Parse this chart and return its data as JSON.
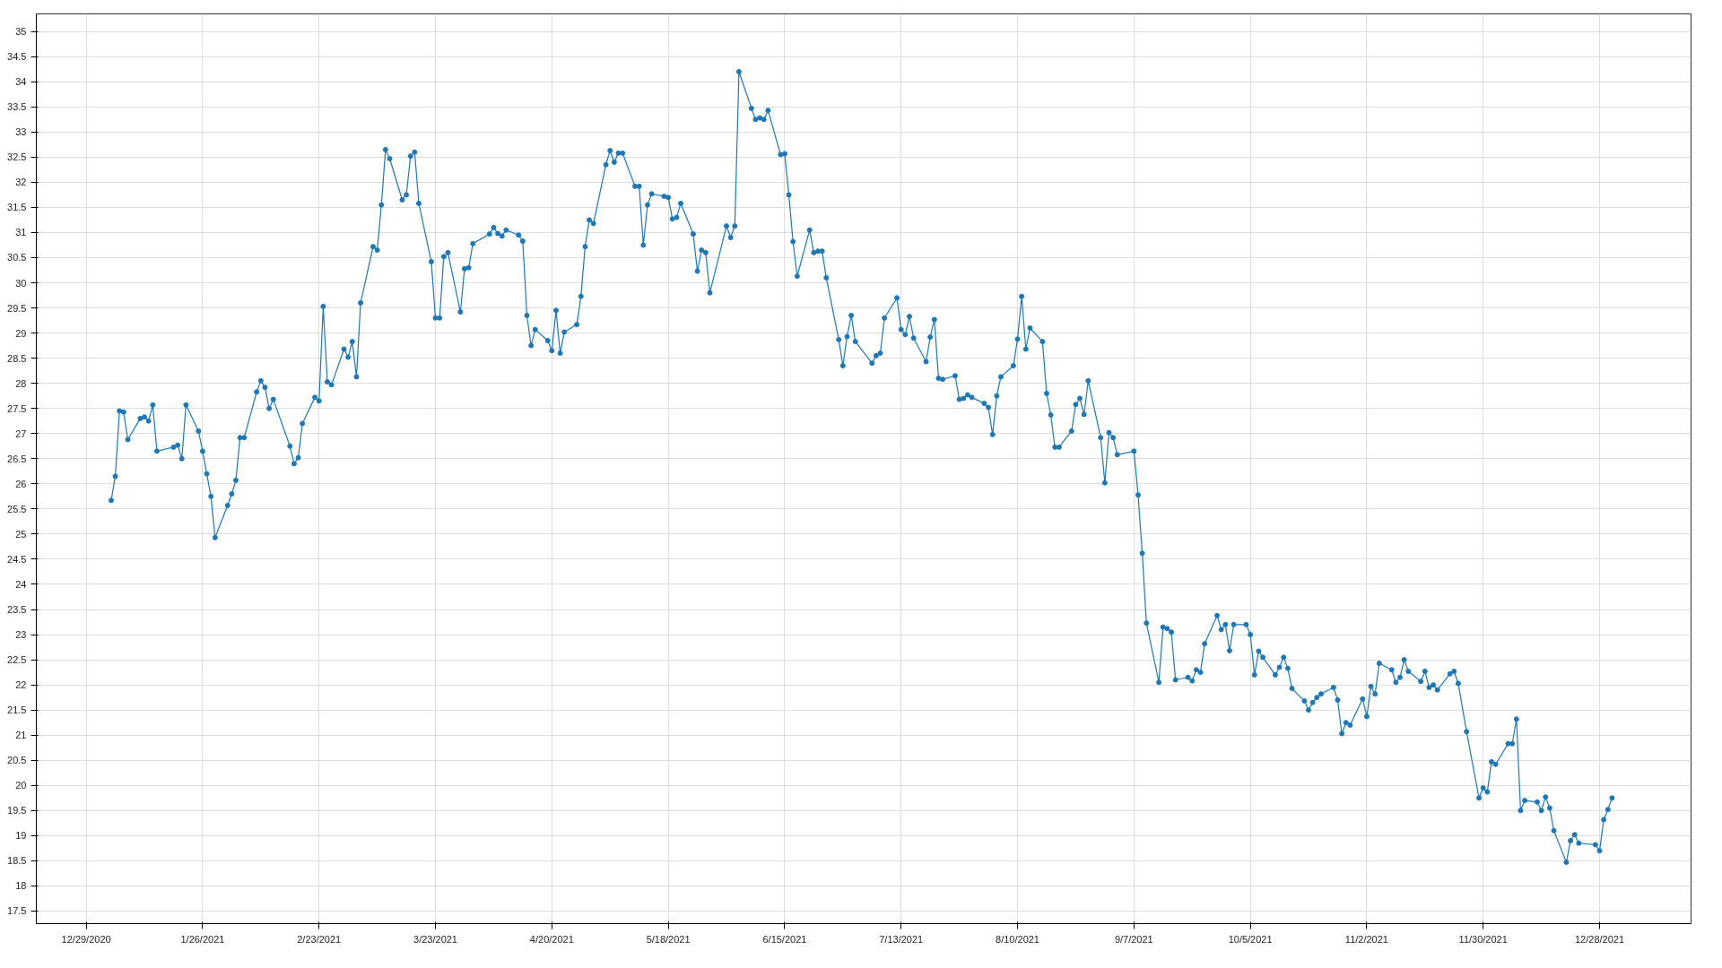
{
  "chart_data": {
    "type": "line",
    "marker": "circle",
    "grid": true,
    "xlim": [
      "2020-12-17",
      "2022-01-19"
    ],
    "ylim": [
      17.25,
      35.35
    ],
    "xticks": [
      {
        "value": "2020-12-29",
        "label": "12/29/2020"
      },
      {
        "value": "2021-01-26",
        "label": "1/26/2021"
      },
      {
        "value": "2021-02-23",
        "label": "2/23/2021"
      },
      {
        "value": "2021-03-23",
        "label": "3/23/2021"
      },
      {
        "value": "2021-04-20",
        "label": "4/20/2021"
      },
      {
        "value": "2021-05-18",
        "label": "5/18/2021"
      },
      {
        "value": "2021-06-15",
        "label": "6/15/2021"
      },
      {
        "value": "2021-07-13",
        "label": "7/13/2021"
      },
      {
        "value": "2021-08-10",
        "label": "8/10/2021"
      },
      {
        "value": "2021-09-07",
        "label": "9/7/2021"
      },
      {
        "value": "2021-10-05",
        "label": "10/5/2021"
      },
      {
        "value": "2021-11-02",
        "label": "11/2/2021"
      },
      {
        "value": "2021-11-30",
        "label": "11/30/2021"
      },
      {
        "value": "2021-12-28",
        "label": "12/28/2021"
      }
    ],
    "yticks": [
      17.5,
      18,
      18.5,
      19,
      19.5,
      20,
      20.5,
      21,
      21.5,
      22,
      22.5,
      23,
      23.5,
      24,
      24.5,
      25,
      25.5,
      26,
      26.5,
      27,
      27.5,
      28,
      28.5,
      29,
      29.5,
      30,
      30.5,
      31,
      31.5,
      32,
      32.5,
      33,
      33.5,
      34,
      34.5,
      35
    ],
    "series": [
      {
        "color": "#1f77b4",
        "x": [
          "2021-01-04",
          "2021-01-05",
          "2021-01-06",
          "2021-01-07",
          "2021-01-08",
          "2021-01-11",
          "2021-01-12",
          "2021-01-13",
          "2021-01-14",
          "2021-01-15",
          "2021-01-19",
          "2021-01-20",
          "2021-01-21",
          "2021-01-22",
          "2021-01-25",
          "2021-01-26",
          "2021-01-27",
          "2021-01-28",
          "2021-01-29",
          "2021-02-01",
          "2021-02-02",
          "2021-02-03",
          "2021-02-04",
          "2021-02-05",
          "2021-02-08",
          "2021-02-09",
          "2021-02-10",
          "2021-02-11",
          "2021-02-12",
          "2021-02-16",
          "2021-02-17",
          "2021-02-18",
          "2021-02-19",
          "2021-02-22",
          "2021-02-23",
          "2021-02-24",
          "2021-02-25",
          "2021-02-26",
          "2021-03-01",
          "2021-03-02",
          "2021-03-03",
          "2021-03-04",
          "2021-03-05",
          "2021-03-08",
          "2021-03-09",
          "2021-03-10",
          "2021-03-11",
          "2021-03-12",
          "2021-03-15",
          "2021-03-16",
          "2021-03-17",
          "2021-03-18",
          "2021-03-19",
          "2021-03-22",
          "2021-03-23",
          "2021-03-24",
          "2021-03-25",
          "2021-03-26",
          "2021-03-29",
          "2021-03-30",
          "2021-03-31",
          "2021-04-01",
          "2021-04-05",
          "2021-04-06",
          "2021-04-07",
          "2021-04-08",
          "2021-04-09",
          "2021-04-12",
          "2021-04-13",
          "2021-04-14",
          "2021-04-15",
          "2021-04-16",
          "2021-04-19",
          "2021-04-20",
          "2021-04-21",
          "2021-04-22",
          "2021-04-23",
          "2021-04-26",
          "2021-04-27",
          "2021-04-28",
          "2021-04-29",
          "2021-04-30",
          "2021-05-03",
          "2021-05-04",
          "2021-05-05",
          "2021-05-06",
          "2021-05-07",
          "2021-05-10",
          "2021-05-11",
          "2021-05-12",
          "2021-05-13",
          "2021-05-14",
          "2021-05-17",
          "2021-05-18",
          "2021-05-19",
          "2021-05-20",
          "2021-05-21",
          "2021-05-24",
          "2021-05-25",
          "2021-05-26",
          "2021-05-27",
          "2021-05-28",
          "2021-06-01",
          "2021-06-02",
          "2021-06-03",
          "2021-06-04",
          "2021-06-07",
          "2021-06-08",
          "2021-06-09",
          "2021-06-10",
          "2021-06-11",
          "2021-06-14",
          "2021-06-15",
          "2021-06-16",
          "2021-06-17",
          "2021-06-18",
          "2021-06-21",
          "2021-06-22",
          "2021-06-23",
          "2021-06-24",
          "2021-06-25",
          "2021-06-28",
          "2021-06-29",
          "2021-06-30",
          "2021-07-01",
          "2021-07-02",
          "2021-07-06",
          "2021-07-07",
          "2021-07-08",
          "2021-07-09",
          "2021-07-12",
          "2021-07-13",
          "2021-07-14",
          "2021-07-15",
          "2021-07-16",
          "2021-07-19",
          "2021-07-20",
          "2021-07-21",
          "2021-07-22",
          "2021-07-23",
          "2021-07-26",
          "2021-07-27",
          "2021-07-28",
          "2021-07-29",
          "2021-07-30",
          "2021-08-02",
          "2021-08-03",
          "2021-08-04",
          "2021-08-05",
          "2021-08-06",
          "2021-08-09",
          "2021-08-10",
          "2021-08-11",
          "2021-08-12",
          "2021-08-13",
          "2021-08-16",
          "2021-08-17",
          "2021-08-18",
          "2021-08-19",
          "2021-08-20",
          "2021-08-23",
          "2021-08-24",
          "2021-08-25",
          "2021-08-26",
          "2021-08-27",
          "2021-08-30",
          "2021-08-31",
          "2021-09-01",
          "2021-09-02",
          "2021-09-03",
          "2021-09-07",
          "2021-09-08",
          "2021-09-09",
          "2021-09-10",
          "2021-09-13",
          "2021-09-14",
          "2021-09-15",
          "2021-09-16",
          "2021-09-17",
          "2021-09-20",
          "2021-09-21",
          "2021-09-22",
          "2021-09-23",
          "2021-09-24",
          "2021-09-27",
          "2021-09-28",
          "2021-09-29",
          "2021-09-30",
          "2021-10-01",
          "2021-10-04",
          "2021-10-05",
          "2021-10-06",
          "2021-10-07",
          "2021-10-08",
          "2021-10-11",
          "2021-10-12",
          "2021-10-13",
          "2021-10-14",
          "2021-10-15",
          "2021-10-18",
          "2021-10-19",
          "2021-10-20",
          "2021-10-21",
          "2021-10-22",
          "2021-10-25",
          "2021-10-26",
          "2021-10-27",
          "2021-10-28",
          "2021-10-29",
          "2021-11-01",
          "2021-11-02",
          "2021-11-03",
          "2021-11-04",
          "2021-11-05",
          "2021-11-08",
          "2021-11-09",
          "2021-11-10",
          "2021-11-11",
          "2021-11-12",
          "2021-11-15",
          "2021-11-16",
          "2021-11-17",
          "2021-11-18",
          "2021-11-19",
          "2021-11-22",
          "2021-11-23",
          "2021-11-24",
          "2021-11-26",
          "2021-11-29",
          "2021-11-30",
          "2021-12-01",
          "2021-12-02",
          "2021-12-03",
          "2021-12-06",
          "2021-12-07",
          "2021-12-08",
          "2021-12-09",
          "2021-12-10",
          "2021-12-13",
          "2021-12-14",
          "2021-12-15",
          "2021-12-16",
          "2021-12-17",
          "2021-12-20",
          "2021-12-21",
          "2021-12-22",
          "2021-12-23",
          "2021-12-27",
          "2021-12-28",
          "2021-12-29",
          "2021-12-30",
          "2021-12-31"
        ],
        "values": [
          25.67,
          26.15,
          27.45,
          27.43,
          26.88,
          27.3,
          27.33,
          27.25,
          27.57,
          26.65,
          26.73,
          26.77,
          26.5,
          27.57,
          27.05,
          26.65,
          26.2,
          25.75,
          24.93,
          25.57,
          25.8,
          26.07,
          26.92,
          26.92,
          27.83,
          28.05,
          27.92,
          27.5,
          27.68,
          26.75,
          26.4,
          26.52,
          27.2,
          27.72,
          27.65,
          29.53,
          28.03,
          27.97,
          28.68,
          28.52,
          28.83,
          28.13,
          29.6,
          30.72,
          30.65,
          31.55,
          32.65,
          32.47,
          31.65,
          31.75,
          32.52,
          32.6,
          31.58,
          30.42,
          29.3,
          29.3,
          30.52,
          30.6,
          29.42,
          30.28,
          30.3,
          30.78,
          30.97,
          31.1,
          30.98,
          30.93,
          31.05,
          30.95,
          30.83,
          29.35,
          28.75,
          29.07,
          28.85,
          28.65,
          29.45,
          28.6,
          29.02,
          29.17,
          29.73,
          30.72,
          31.25,
          31.18,
          32.35,
          32.63,
          32.4,
          32.58,
          32.58,
          31.92,
          31.92,
          30.75,
          31.55,
          31.77,
          31.72,
          31.7,
          31.27,
          31.3,
          31.58,
          30.97,
          30.23,
          30.65,
          30.6,
          29.8,
          31.13,
          30.9,
          31.13,
          34.2,
          33.47,
          33.25,
          33.28,
          33.25,
          33.43,
          32.55,
          32.57,
          31.75,
          30.82,
          30.13,
          31.05,
          30.6,
          30.63,
          30.63,
          30.1,
          28.87,
          28.35,
          28.93,
          29.35,
          28.83,
          28.4,
          28.55,
          28.6,
          29.3,
          29.7,
          29.07,
          28.97,
          29.33,
          28.9,
          28.43,
          28.92,
          29.27,
          28.1,
          28.08,
          28.15,
          27.68,
          27.7,
          27.77,
          27.72,
          27.6,
          27.52,
          26.98,
          27.75,
          28.13,
          28.35,
          28.88,
          29.73,
          28.68,
          29.1,
          28.83,
          27.8,
          27.37,
          26.73,
          26.73,
          27.05,
          27.58,
          27.7,
          27.38,
          28.05,
          26.92,
          26.02,
          27.02,
          26.92,
          26.58,
          26.65,
          25.78,
          24.62,
          23.23,
          22.05,
          23.15,
          23.12,
          23.05,
          22.1,
          22.15,
          22.08,
          22.3,
          22.25,
          22.82,
          23.38,
          23.1,
          23.2,
          22.68,
          23.2,
          23.2,
          23.0,
          22.2,
          22.67,
          22.55,
          22.2,
          22.35,
          22.55,
          22.33,
          21.93,
          21.68,
          21.5,
          21.65,
          21.75,
          21.82,
          21.95,
          21.7,
          21.03,
          21.25,
          21.2,
          21.72,
          21.37,
          21.97,
          21.82,
          22.43,
          22.3,
          22.05,
          22.15,
          22.5,
          22.27,
          22.07,
          22.27,
          21.95,
          22.0,
          21.9,
          22.22,
          22.27,
          22.03,
          21.07,
          19.75,
          19.95,
          19.87,
          20.47,
          20.42,
          20.83,
          20.83,
          21.32,
          19.5,
          19.7,
          19.67,
          19.5,
          19.77,
          19.55,
          19.1,
          18.47,
          18.9,
          19.02,
          18.85,
          18.82,
          18.7,
          19.32,
          19.52,
          19.75
        ]
      }
    ]
  }
}
